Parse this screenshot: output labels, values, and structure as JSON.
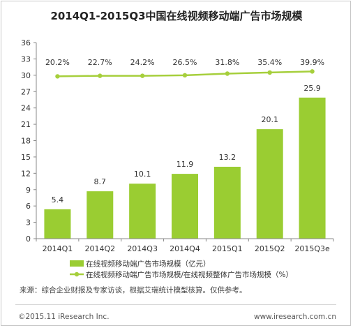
{
  "colors": {
    "bar": "#9acd32",
    "line": "#a6cf3c",
    "axis": "#888888",
    "text": "#333333"
  },
  "chart_data": {
    "type": "bar",
    "title": "2014Q1-2015Q3中国在线视频移动端广告市场规模",
    "categories": [
      "2014Q1",
      "2014Q2",
      "2014Q3",
      "2014Q4",
      "2015Q1",
      "2015Q2",
      "2015Q3e"
    ],
    "series": [
      {
        "name": "在线视频移动端广告市场规模（亿元）",
        "type": "bar",
        "values": [
          5.4,
          8.7,
          10.1,
          11.9,
          13.2,
          20.1,
          25.9
        ]
      },
      {
        "name": "在线视频移动端广告市场规模/在线视频整体广告市场规模（%）",
        "type": "line",
        "labels": [
          "20.2%",
          "22.7%",
          "24.2%",
          "26.5%",
          "31.8%",
          "35.4%",
          "39.9%"
        ]
      }
    ],
    "yticks": [
      "0",
      "3",
      "6",
      "9",
      "12",
      "15",
      "18",
      "21",
      "24",
      "27",
      "30",
      "33",
      "36"
    ],
    "ylim": [
      0,
      36
    ],
    "line_position_values": [
      29.8,
      29.9,
      29.9,
      30.0,
      30.3,
      30.5,
      30.7
    ],
    "grid": false,
    "legend_position": "bottom"
  },
  "footer": {
    "source": "来源：综合企业财报及专家访谈，根据艾瑞统计模型核算。仅供参考。",
    "copyright": "©2015.11 iResearch Inc.",
    "website": "www.iresearch.com.cn"
  }
}
